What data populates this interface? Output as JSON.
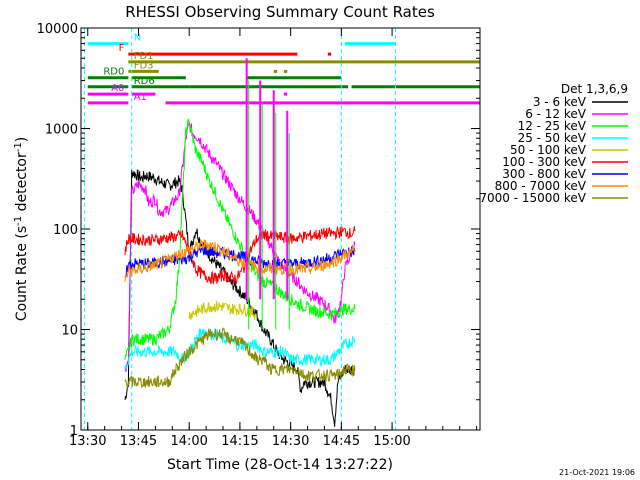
{
  "chart_data": {
    "type": "line",
    "title": "RHESSI Observing Summary Count Rates",
    "xlabel": "Start Time (28-Oct-14 13:27:22)",
    "ylabel": "Count Rate (s",
    "ylabel_sup1": "-1",
    "ylabel_mid": " detector",
    "ylabel_sup2": "-1",
    "ylabel_end": ")",
    "y_scale": "log",
    "ylim": [
      1,
      10000
    ],
    "xlim_minutes": [
      -2,
      116
    ],
    "x_ticks": [
      {
        "label": "13:30",
        "m": 0
      },
      {
        "label": "13:45",
        "m": 15
      },
      {
        "label": "14:00",
        "m": 30
      },
      {
        "label": "14:15",
        "m": 45
      },
      {
        "label": "14:30",
        "m": 60
      },
      {
        "label": "14:45",
        "m": 75
      },
      {
        "label": "15:00",
        "m": 90
      }
    ],
    "y_ticks": [
      {
        "label": "1",
        "v": 1
      },
      {
        "label": "10",
        "v": 10
      },
      {
        "label": "100",
        "v": 100
      },
      {
        "label": "1000",
        "v": 1000
      },
      {
        "label": "10000",
        "v": 10000
      }
    ],
    "legend_title": "Det 1,3,6,9",
    "legend_placement": "right, outside plot",
    "series": [
      {
        "name": "3 - 6 keV",
        "color": "#000000",
        "x": [
          11,
          12,
          13,
          16,
          17,
          20,
          21,
          24,
          25,
          27,
          28,
          30,
          31,
          32,
          33,
          34,
          36,
          38,
          40,
          42,
          44,
          46,
          48,
          50,
          52,
          54,
          56,
          58,
          60,
          62,
          63,
          64,
          66,
          68,
          70,
          72,
          73,
          74,
          75,
          76,
          78,
          79
        ],
        "y": [
          2,
          3,
          370,
          320,
          340,
          320,
          300,
          270,
          280,
          300,
          240,
          60,
          75,
          100,
          80,
          70,
          55,
          45,
          38,
          30,
          26,
          22,
          18,
          14,
          10,
          8,
          6,
          5,
          4.5,
          4,
          2.5,
          3,
          3,
          3,
          3,
          2,
          1.2,
          3,
          3.5,
          4,
          4,
          4
        ]
      },
      {
        "name": "6 - 12 keV",
        "color": "#ff00ff",
        "x": [
          11,
          12,
          13,
          15,
          17,
          18,
          20,
          21,
          23,
          24,
          26,
          27,
          28,
          29,
          30,
          31,
          32,
          33,
          34,
          36,
          38,
          40,
          42,
          44,
          46,
          48,
          50,
          52,
          54,
          56,
          58,
          60,
          62,
          64,
          66,
          68,
          70,
          72,
          73,
          74,
          75,
          76,
          79
        ],
        "y": [
          4,
          5,
          230,
          280,
          250,
          180,
          200,
          150,
          150,
          160,
          200,
          220,
          400,
          800,
          1100,
          900,
          850,
          800,
          700,
          550,
          450,
          350,
          280,
          220,
          180,
          150,
          120,
          90,
          70,
          50,
          40,
          35,
          30,
          25,
          22,
          20,
          18,
          15,
          12,
          15,
          20,
          40,
          70
        ]
      },
      {
        "name": "12 - 25 keV",
        "color": "#00ff00",
        "x": [
          11,
          12,
          13,
          18,
          20,
          22,
          24,
          26,
          27,
          28,
          29,
          30,
          31,
          32,
          34,
          36,
          38,
          40,
          42,
          44,
          46,
          48,
          50,
          52,
          54,
          56,
          58,
          60,
          62,
          64,
          66,
          68,
          70,
          72,
          74,
          76,
          78,
          79
        ],
        "y": [
          5,
          6,
          8,
          8,
          8,
          9,
          10,
          20,
          45,
          200,
          900,
          1200,
          800,
          600,
          450,
          300,
          220,
          150,
          110,
          80,
          60,
          45,
          35,
          30,
          28,
          25,
          22,
          20,
          18,
          17,
          16,
          15,
          15,
          14,
          15,
          16,
          16,
          16
        ]
      },
      {
        "name": "25 - 50 keV",
        "color": "#00ffff",
        "x": [
          11,
          12,
          13,
          18,
          20,
          22,
          24,
          26,
          28,
          30,
          32,
          34,
          36,
          38,
          40,
          42,
          44,
          46,
          48,
          50,
          52,
          54,
          56,
          58,
          60,
          62,
          64,
          66,
          68,
          70,
          72,
          74,
          76,
          79
        ],
        "y": [
          4,
          5,
          6,
          6,
          6,
          6,
          6,
          6,
          5,
          6,
          8,
          10,
          9,
          9,
          8,
          8,
          7,
          7,
          7,
          7,
          6,
          6,
          6,
          6,
          5,
          5,
          5,
          5,
          5,
          5,
          5,
          6,
          7,
          8
        ]
      },
      {
        "name": "50 - 100 keV",
        "color": "#c8c800",
        "x": [
          30,
          32,
          34,
          36,
          38,
          40,
          42,
          44,
          46,
          48,
          50
        ],
        "y": [
          14,
          15,
          16,
          17,
          17,
          17,
          16,
          16,
          16,
          15,
          14
        ]
      },
      {
        "name": "100 - 300 keV",
        "color": "#ff0000",
        "x": [
          11,
          12,
          13,
          16,
          18,
          20,
          22,
          24,
          26,
          28,
          30,
          32,
          34,
          36,
          38,
          40,
          42,
          44,
          46,
          48,
          50,
          52,
          54,
          56,
          58,
          60,
          62,
          64,
          66,
          68,
          70,
          72,
          74,
          76,
          78,
          79
        ],
        "y": [
          60,
          80,
          80,
          78,
          78,
          78,
          80,
          82,
          84,
          86,
          60,
          40,
          35,
          33,
          32,
          35,
          33,
          32,
          40,
          60,
          80,
          88,
          84,
          84,
          82,
          80,
          82,
          84,
          86,
          88,
          90,
          90,
          92,
          95,
          90,
          95
        ]
      },
      {
        "name": "300 - 800 keV",
        "color": "#0000ff",
        "x": [
          11,
          12,
          13,
          16,
          18,
          20,
          22,
          24,
          26,
          28,
          30,
          32,
          34,
          36,
          38,
          40,
          42,
          44,
          46,
          48,
          50,
          52,
          54,
          56,
          58,
          60,
          62,
          64,
          66,
          68,
          70,
          72,
          74,
          76,
          78,
          79
        ],
        "y": [
          30,
          44,
          45,
          45,
          45,
          46,
          47,
          48,
          49,
          50,
          52,
          58,
          62,
          60,
          58,
          58,
          56,
          55,
          52,
          50,
          48,
          46,
          46,
          45,
          45,
          45,
          45,
          46,
          47,
          48,
          50,
          52,
          56,
          58,
          60,
          60
        ]
      },
      {
        "name": "800 - 7000 keV",
        "color": "#ff8c00",
        "x": [
          11,
          12,
          13,
          16,
          18,
          20,
          22,
          24,
          26,
          28,
          30,
          32,
          34,
          36,
          38,
          40,
          42,
          44,
          46,
          48,
          50,
          52,
          54,
          56,
          58,
          60,
          62,
          64,
          66,
          68,
          70,
          72,
          74,
          76,
          78,
          79
        ],
        "y": [
          30,
          38,
          38,
          40,
          42,
          44,
          46,
          50,
          54,
          58,
          62,
          66,
          70,
          70,
          66,
          60,
          55,
          50,
          46,
          44,
          42,
          40,
          40,
          40,
          40,
          40,
          40,
          40,
          40,
          42,
          44,
          46,
          50,
          55,
          58,
          60
        ]
      },
      {
        "name": "7000 - 15000 keV",
        "color": "#8b8b00",
        "x": [
          11,
          12,
          13,
          16,
          18,
          20,
          22,
          24,
          26,
          28,
          30,
          32,
          34,
          36,
          38,
          40,
          42,
          44,
          46,
          48,
          50,
          52,
          54,
          56,
          58,
          60,
          62,
          64,
          66,
          68,
          70,
          72,
          74,
          76,
          78,
          79
        ],
        "y": [
          3,
          3,
          3,
          3,
          3,
          3,
          3,
          3,
          4,
          5,
          6,
          7,
          8,
          9,
          9,
          9,
          8,
          8,
          7,
          6,
          5,
          5,
          4,
          4,
          4,
          4,
          4,
          3.5,
          3.5,
          3.5,
          3.5,
          3.5,
          3.5,
          4,
          4,
          4
        ]
      }
    ],
    "spikes": [
      {
        "m": 47,
        "top": 5000
      },
      {
        "m": 51,
        "top": 3000
      },
      {
        "m": 55,
        "top": 2400
      },
      {
        "m": 59,
        "top": 1500
      }
    ],
    "flag_bars": [
      {
        "label": "N",
        "color": "#00ffff",
        "segments": [
          [
            0,
            12
          ],
          [
            76,
            91
          ]
        ],
        "level": 7000
      },
      {
        "label": "F",
        "color": "#ff0000",
        "segments": [
          [
            12,
            62
          ],
          [
            71,
            72
          ]
        ],
        "level": 5500
      },
      {
        "label": "FD1",
        "color": "#8b8b00",
        "segments": [
          [
            12,
            120
          ]
        ],
        "level": 4600
      },
      {
        "label": "FD3",
        "color": "#8b8b00",
        "segments": [
          [
            12,
            21
          ],
          [
            55,
            56
          ],
          [
            58,
            59
          ]
        ],
        "level": 3700
      },
      {
        "label": "RD0",
        "color": "#008000",
        "segments": [
          [
            0,
            12
          ],
          [
            13,
            29
          ],
          [
            47,
            75
          ]
        ],
        "level": 3200
      },
      {
        "label": "RD6",
        "color": "#008000",
        "segments": [
          [
            0,
            12
          ],
          [
            13,
            30
          ],
          [
            30,
            48
          ],
          [
            48,
            77
          ],
          [
            78,
            120
          ]
        ],
        "level": 2600
      },
      {
        "label": "A0",
        "color": "#ff00ff",
        "segments": [
          [
            0,
            12
          ],
          [
            13,
            20
          ],
          [
            58,
            59
          ]
        ],
        "level": 2200
      },
      {
        "label": "A1",
        "color": "#ff00ff",
        "segments": [
          [
            0,
            12
          ],
          [
            23,
            120
          ]
        ],
        "level": 1800
      }
    ],
    "vlines": [
      {
        "m": -1,
        "color": "#00ffff"
      },
      {
        "m": 13,
        "color": "#00ffff"
      },
      {
        "m": 75,
        "color": "#00ffff"
      },
      {
        "m": 91,
        "color": "#00ffff"
      }
    ]
  },
  "footer_date": "21-Oct-2021 19:06"
}
